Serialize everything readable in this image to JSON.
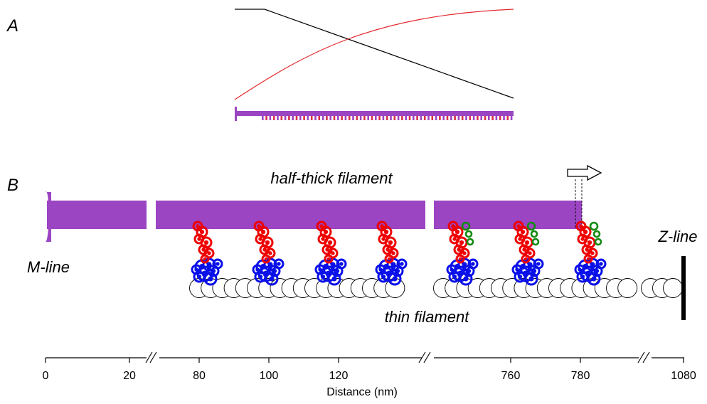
{
  "panels": {
    "a": "A",
    "b": "B"
  },
  "labels": {
    "half_thick": "half-thick filament",
    "thin": "thin filament",
    "m_line": "M-line",
    "z_line": "Z-line"
  },
  "axis": {
    "title": "Distance (nm)",
    "ticks": [
      "0",
      "20",
      "80",
      "100",
      "120",
      "760",
      "780",
      "1080"
    ]
  },
  "colors": {
    "thick_filament": "#9b45c3",
    "myosin_head": "#ee0000",
    "light_chain_green": "#118a11",
    "actin_binding_blue": "#0a10e8",
    "line_black": "#000000",
    "line_red": "#e3262b"
  },
  "icons": {
    "movement_arrow": "hollow-right-arrow",
    "axis_break": "double-slash"
  },
  "motor_head_count": 7,
  "actin_bead_count": 45
}
